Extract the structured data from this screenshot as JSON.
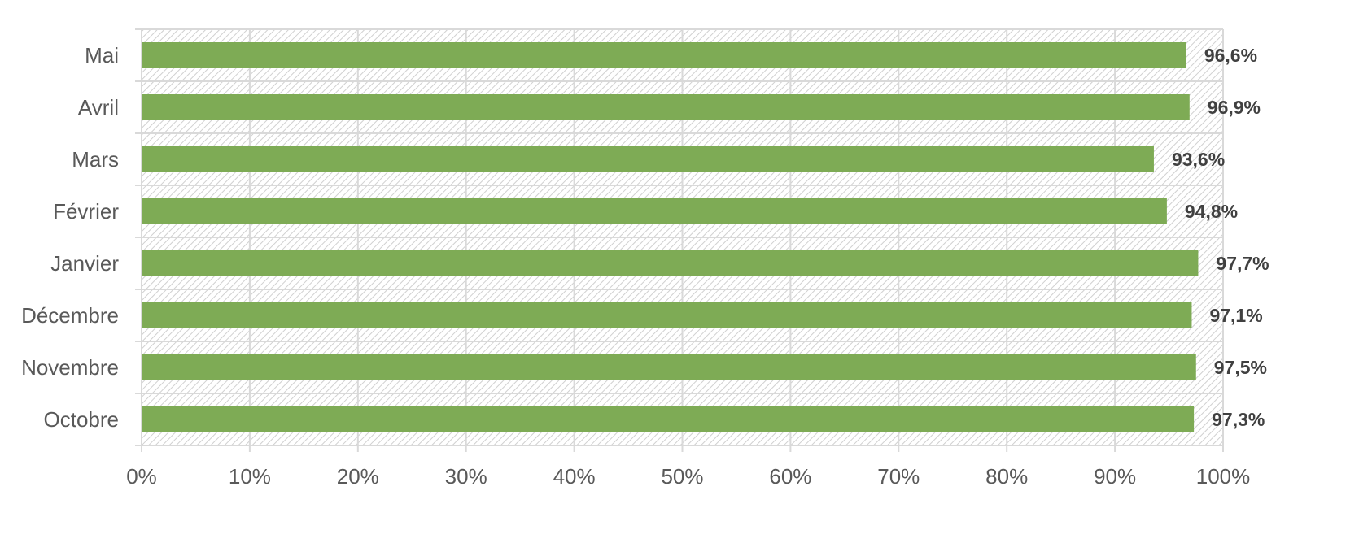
{
  "chart_data": {
    "type": "bar",
    "orientation": "horizontal",
    "categories": [
      "Mai",
      "Avril",
      "Mars",
      "Février",
      "Janvier",
      "Décembre",
      "Novembre",
      "Octobre"
    ],
    "values": [
      96.6,
      96.9,
      93.6,
      94.8,
      97.7,
      97.1,
      97.5,
      97.3
    ],
    "data_labels": [
      "96,6%",
      "96,9%",
      "93,6%",
      "94,8%",
      "97,7%",
      "97,1%",
      "97,5%",
      "97,3%"
    ],
    "xticks": [
      "0%",
      "10%",
      "20%",
      "30%",
      "40%",
      "50%",
      "60%",
      "70%",
      "80%",
      "90%",
      "100%"
    ],
    "xlim": [
      0,
      100
    ],
    "title": "",
    "xlabel": "",
    "ylabel": "",
    "grid": true,
    "legend": "none",
    "colors": {
      "bar": "#7EAB55",
      "grid": "#D9D9D9",
      "hatch": "#D0D0D0",
      "text": "#595959",
      "data_label": "#404040"
    }
  }
}
